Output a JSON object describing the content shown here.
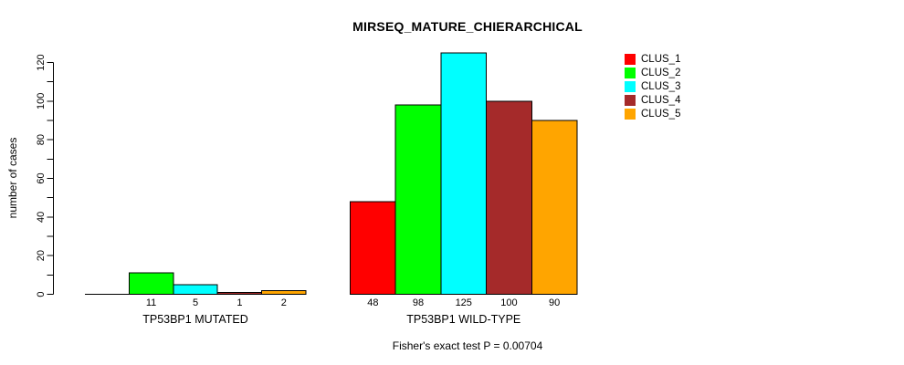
{
  "title": "MIRSEQ_MATURE_CHIERARCHICAL",
  "chart_data": {
    "type": "bar",
    "title": "MIRSEQ_MATURE_CHIERARCHICAL",
    "ylabel": "number of cases",
    "xlabel": "",
    "annotation": "Fisher's exact test P = 0.00704",
    "ylim": [
      0,
      120
    ],
    "grid": false,
    "y_ticks": {
      "minor_step": 10,
      "labeled_values": [
        0,
        20,
        40,
        60,
        80,
        100,
        120
      ],
      "tick_labels": [
        "0",
        "20",
        "40",
        "60",
        "80",
        "100",
        "120"
      ]
    },
    "categories": [
      "TP53BP1 MUTATED",
      "TP53BP1 WILD-TYPE"
    ],
    "series": [
      {
        "name": "CLUS_1",
        "color": "#ff0000",
        "values": [
          0,
          48
        ]
      },
      {
        "name": "CLUS_2",
        "color": "#00ff00",
        "values": [
          11,
          98
        ]
      },
      {
        "name": "CLUS_3",
        "color": "#00ffff",
        "values": [
          5,
          125
        ]
      },
      {
        "name": "CLUS_4",
        "color": "#a52a2a",
        "values": [
          1,
          100
        ]
      },
      {
        "name": "CLUS_5",
        "color": "#ffa500",
        "values": [
          2,
          90
        ]
      }
    ],
    "bar_value_labels": [
      [
        "",
        "11",
        "5",
        "1",
        "2"
      ],
      [
        "48",
        "98",
        "125",
        "100",
        "90"
      ]
    ],
    "legend_position": "right",
    "bar_border_color": "#000000",
    "axis_color": "#000000"
  }
}
